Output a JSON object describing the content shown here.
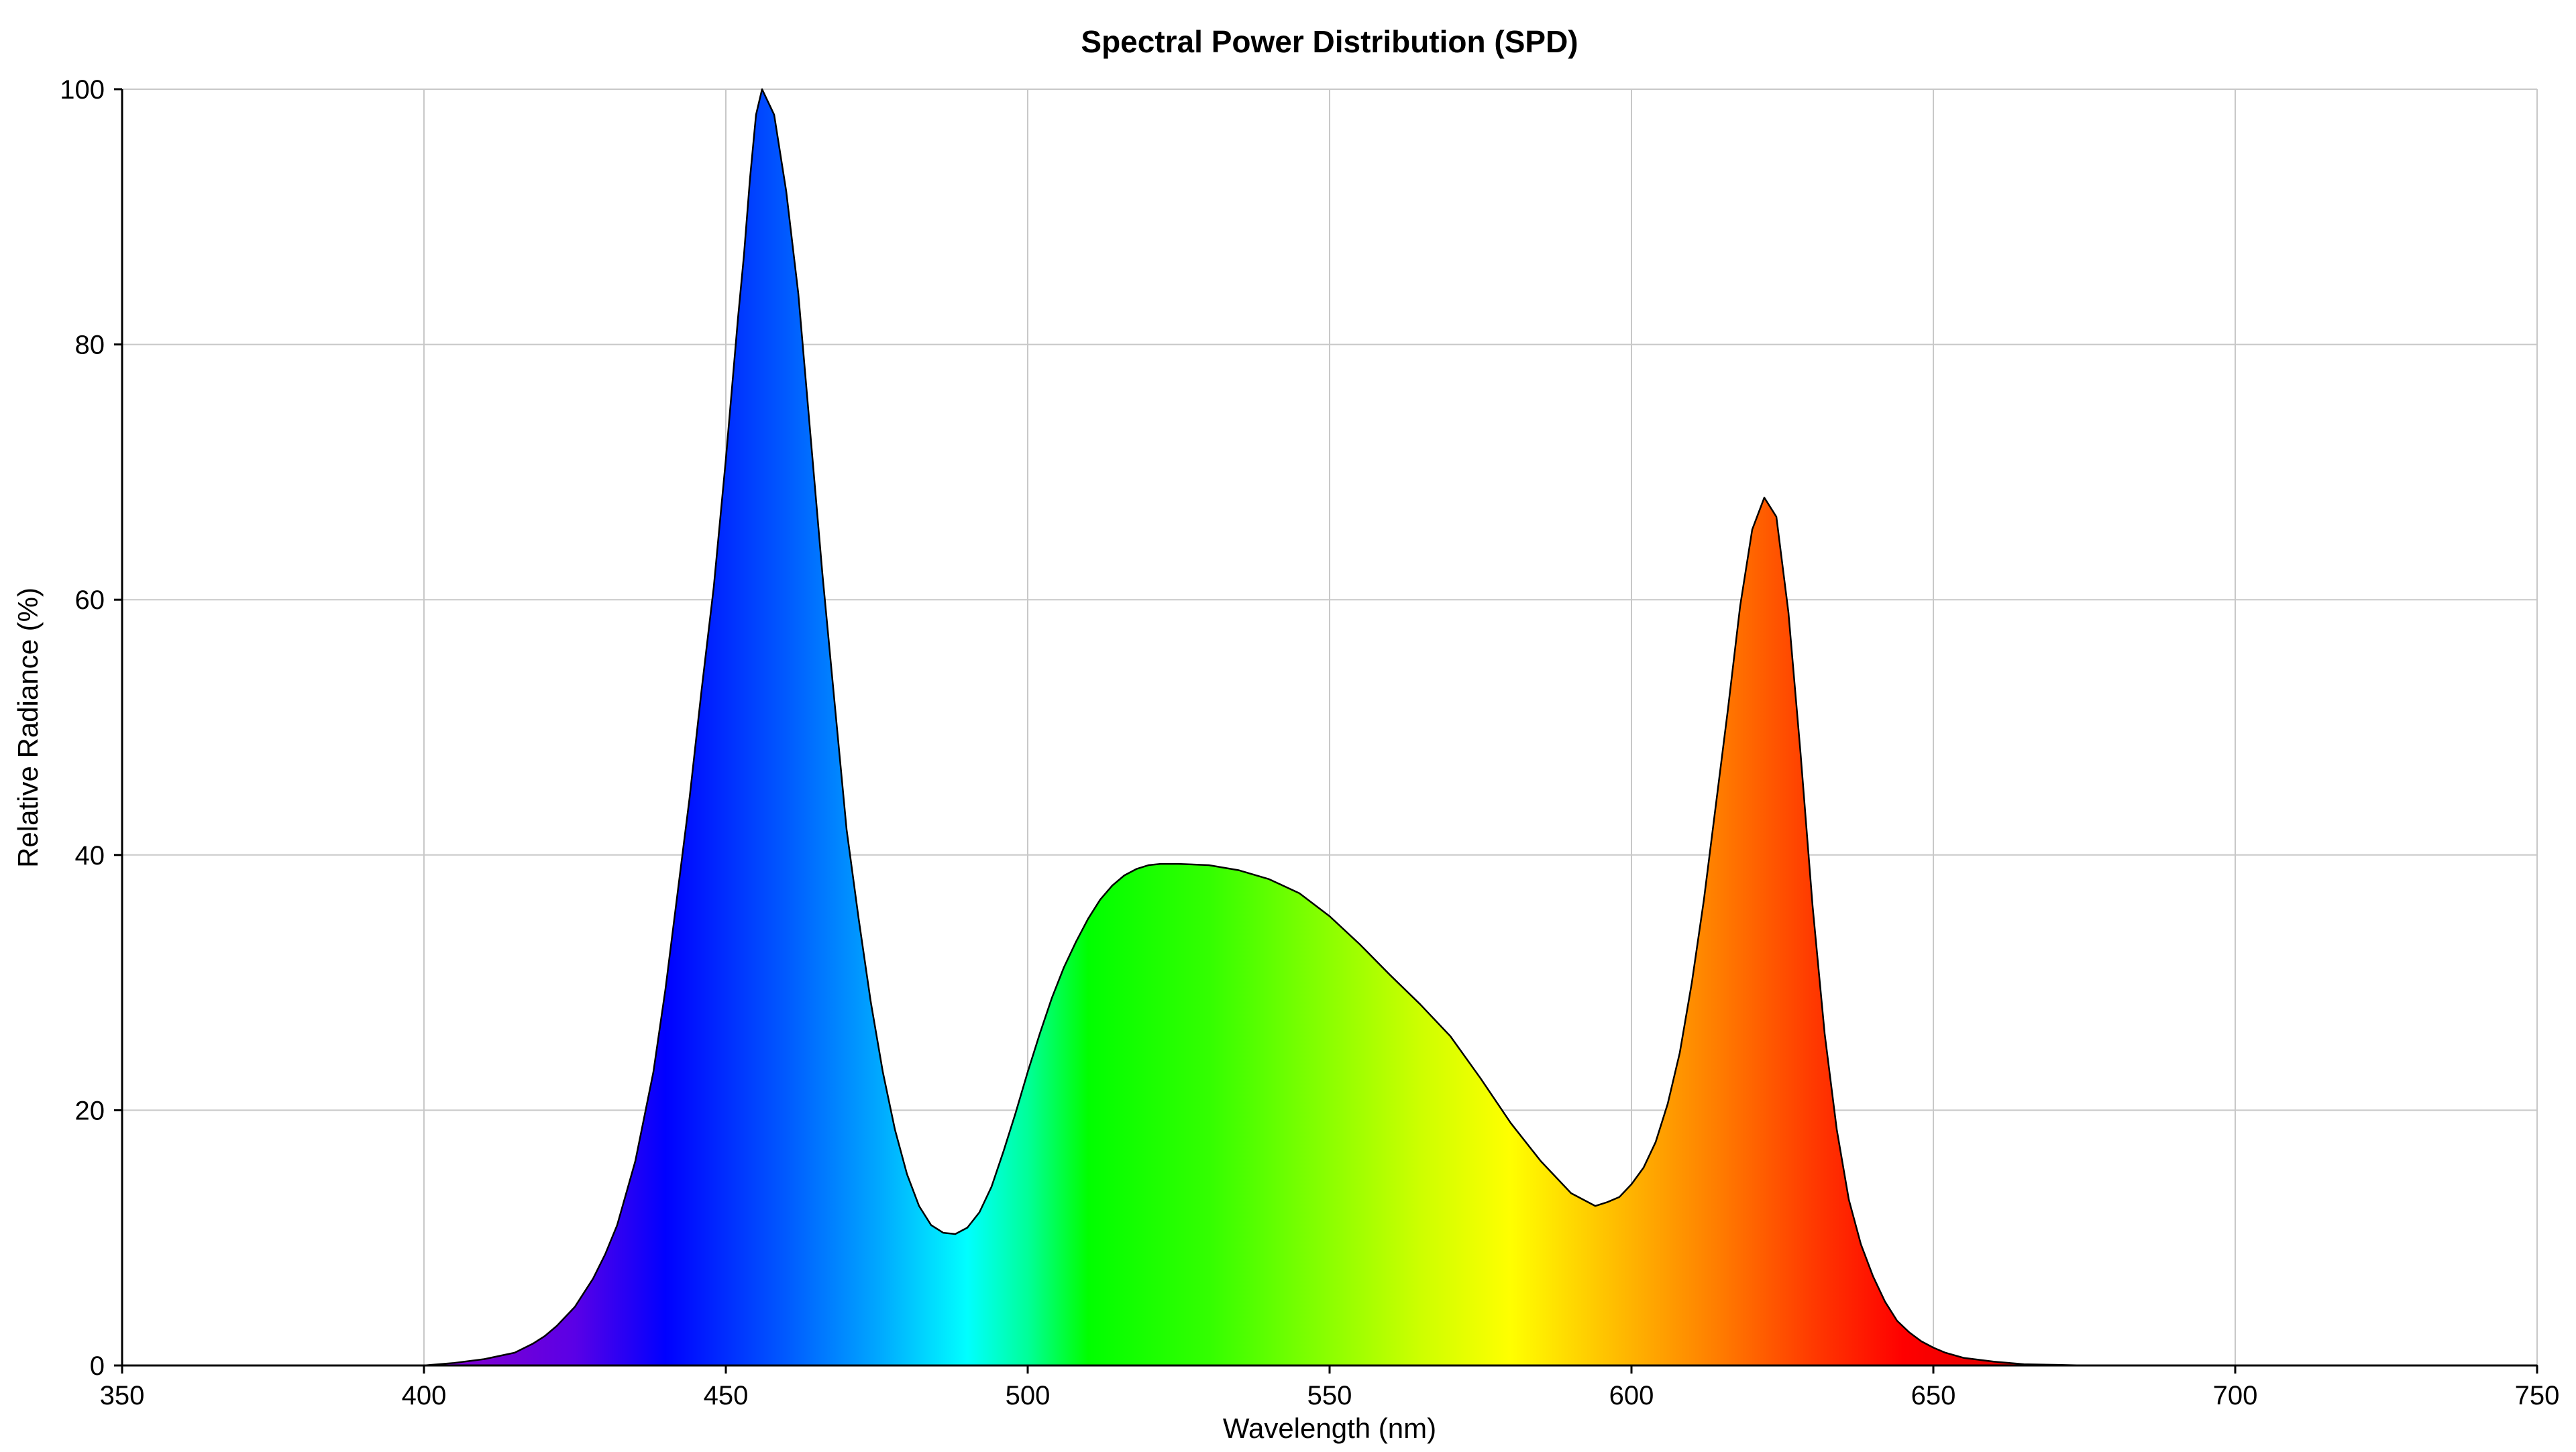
{
  "chart_data": {
    "type": "area",
    "title": "Spectral Power Distribution (SPD)",
    "xlabel": "Wavelength (nm)",
    "ylabel": "Relative Radiance (%)",
    "xlim": [
      350,
      750
    ],
    "ylim": [
      0,
      100
    ],
    "xticks": [
      350,
      400,
      450,
      500,
      550,
      600,
      650,
      700,
      750
    ],
    "yticks": [
      0,
      20,
      40,
      60,
      80,
      100
    ],
    "grid": true,
    "series": [
      {
        "x": [
          350,
          400,
          405,
          410,
          415,
          418,
          420,
          422,
          425,
          428,
          430,
          432,
          435,
          438,
          440,
          442,
          444,
          446,
          448,
          450,
          452,
          453,
          454,
          455,
          456,
          458,
          460,
          462,
          464,
          466,
          468,
          470,
          472,
          474,
          476,
          478,
          480,
          482,
          484,
          486,
          488,
          490,
          492,
          494,
          496,
          498,
          500,
          502,
          504,
          506,
          508,
          510,
          512,
          514,
          516,
          518,
          520,
          522,
          525,
          530,
          535,
          540,
          545,
          550,
          555,
          560,
          565,
          570,
          575,
          580,
          585,
          590,
          594,
          596,
          598,
          600,
          602,
          604,
          606,
          608,
          610,
          612,
          614,
          616,
          618,
          620,
          622,
          624,
          626,
          628,
          630,
          632,
          634,
          636,
          638,
          640,
          642,
          644,
          646,
          648,
          650,
          652,
          655,
          660,
          665,
          670,
          675,
          680,
          700,
          750
        ],
        "y": [
          0,
          0,
          0.2,
          0.5,
          1.0,
          1.7,
          2.3,
          3.1,
          4.6,
          6.8,
          8.7,
          11.0,
          16.0,
          23.0,
          29.5,
          37.0,
          44.5,
          53.0,
          61.0,
          71.0,
          82.0,
          87.0,
          93.0,
          98.0,
          100.0,
          98.0,
          92.0,
          84.0,
          73.0,
          62.0,
          52.0,
          42.0,
          35.0,
          28.5,
          23.0,
          18.5,
          15.0,
          12.5,
          11.0,
          10.4,
          10.3,
          10.8,
          12.0,
          14.0,
          16.8,
          19.8,
          23.0,
          26.0,
          28.8,
          31.2,
          33.2,
          35.0,
          36.5,
          37.6,
          38.4,
          38.9,
          39.2,
          39.3,
          39.3,
          39.2,
          38.8,
          38.1,
          37.0,
          35.2,
          33.0,
          30.6,
          28.3,
          25.8,
          22.5,
          19.0,
          16.0,
          13.5,
          12.5,
          12.8,
          13.2,
          14.2,
          15.5,
          17.5,
          20.5,
          24.5,
          30.0,
          36.5,
          44.0,
          51.5,
          59.5,
          65.5,
          68.0,
          66.5,
          59.0,
          48.0,
          36.0,
          26.0,
          18.5,
          13.0,
          9.5,
          7.0,
          5.0,
          3.5,
          2.6,
          1.9,
          1.4,
          1.0,
          0.6,
          0.3,
          0.1,
          0.05,
          0,
          0,
          0,
          0
        ]
      }
    ],
    "gradient_colors": [
      {
        "wavelength": 410,
        "color": "#7a00d4"
      },
      {
        "wavelength": 425,
        "color": "#5a00e6"
      },
      {
        "wavelength": 440,
        "color": "#0000ff"
      },
      {
        "wavelength": 460,
        "color": "#005aff"
      },
      {
        "wavelength": 475,
        "color": "#00a6ff"
      },
      {
        "wavelength": 490,
        "color": "#00ffff"
      },
      {
        "wavelength": 500,
        "color": "#00ff99"
      },
      {
        "wavelength": 510,
        "color": "#00ff00"
      },
      {
        "wavelength": 530,
        "color": "#33ff00"
      },
      {
        "wavelength": 550,
        "color": "#8cff00"
      },
      {
        "wavelength": 565,
        "color": "#cdff00"
      },
      {
        "wavelength": 580,
        "color": "#ffff00"
      },
      {
        "wavelength": 600,
        "color": "#ffb300"
      },
      {
        "wavelength": 615,
        "color": "#ff7a00"
      },
      {
        "wavelength": 630,
        "color": "#ff3a00"
      },
      {
        "wavelength": 645,
        "color": "#ff0000"
      },
      {
        "wavelength": 670,
        "color": "#d40000"
      }
    ],
    "colors": {
      "outline": "#000000",
      "grid": "#c8c8c8",
      "axis": "#000000"
    }
  }
}
